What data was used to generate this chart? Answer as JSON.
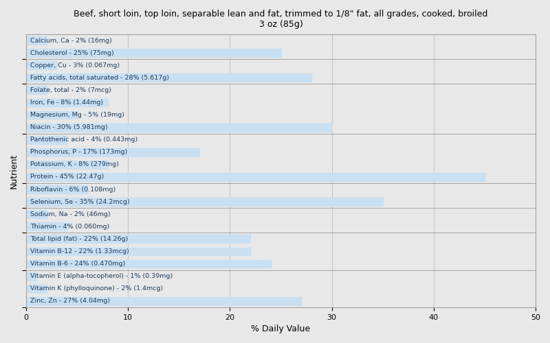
{
  "title": "Beef, short loin, top loin, separable lean and fat, trimmed to 1/8\" fat, all grades, cooked, broiled\n3 oz (85g)",
  "xlabel": "% Daily Value",
  "ylabel": "Nutrient",
  "xlim": [
    0,
    50
  ],
  "xticks": [
    0,
    10,
    20,
    30,
    40,
    50
  ],
  "bar_color": "#c9dff2",
  "background_color": "#e8e8e8",
  "text_color": "#1a3a5c",
  "nutrients": [
    {
      "label": "Calcium, Ca - 2% (16mg)",
      "value": 2
    },
    {
      "label": "Cholesterol - 25% (75mg)",
      "value": 25
    },
    {
      "label": "Copper, Cu - 3% (0.067mg)",
      "value": 3
    },
    {
      "label": "Fatty acids, total saturated - 28% (5.617g)",
      "value": 28
    },
    {
      "label": "Folate, total - 2% (7mcg)",
      "value": 2
    },
    {
      "label": "Iron, Fe - 8% (1.44mg)",
      "value": 8
    },
    {
      "label": "Magnesium, Mg - 5% (19mg)",
      "value": 5
    },
    {
      "label": "Niacin - 30% (5.981mg)",
      "value": 30
    },
    {
      "label": "Pantothenic acid - 4% (0.443mg)",
      "value": 4
    },
    {
      "label": "Phosphorus, P - 17% (173mg)",
      "value": 17
    },
    {
      "label": "Potassium, K - 8% (279mg)",
      "value": 8
    },
    {
      "label": "Protein - 45% (22.47g)",
      "value": 45
    },
    {
      "label": "Riboflavin - 6% (0.108mg)",
      "value": 6
    },
    {
      "label": "Selenium, Se - 35% (24.2mcg)",
      "value": 35
    },
    {
      "label": "Sodium, Na - 2% (46mg)",
      "value": 2
    },
    {
      "label": "Thiamin - 4% (0.060mg)",
      "value": 4
    },
    {
      "label": "Total lipid (fat) - 22% (14.26g)",
      "value": 22
    },
    {
      "label": "Vitamin B-12 - 22% (1.33mcg)",
      "value": 22
    },
    {
      "label": "Vitamin B-6 - 24% (0.470mg)",
      "value": 24
    },
    {
      "label": "Vitamin E (alpha-tocopherol) - 1% (0.39mg)",
      "value": 1
    },
    {
      "label": "Vitamin K (phylloquinone) - 2% (1.4mcg)",
      "value": 2
    },
    {
      "label": "Zinc, Zn - 27% (4.04mg)",
      "value": 27
    }
  ],
  "group_separators": [
    1.5,
    3.5,
    7.5,
    11.5,
    13.5,
    15.5,
    18.5,
    21.5
  ]
}
